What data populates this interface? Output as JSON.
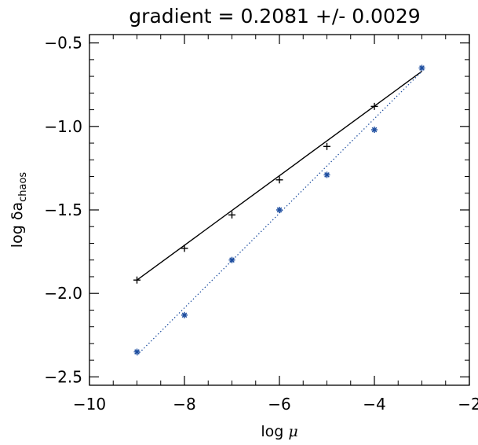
{
  "chart_data": {
    "type": "scatter",
    "title": "gradient = 0.2081 +/- 0.0029",
    "xlabel": {
      "prefix": "log ",
      "symbol": "μ"
    },
    "ylabel": {
      "prefix": "log δa",
      "subscript": "chaos"
    },
    "xlim": [
      -10,
      -2
    ],
    "ylim": [
      -2.55,
      -0.45
    ],
    "x_ticks": [
      -10,
      -8,
      -6,
      -4,
      -2
    ],
    "x_tick_labels": [
      "−10",
      "−8",
      "−6",
      "−4",
      "−2"
    ],
    "y_ticks": [
      -2.5,
      -2.0,
      -1.5,
      -1.0,
      -0.5
    ],
    "y_tick_labels": [
      "−2.5",
      "−2.0",
      "−1.5",
      "−1.0",
      "−0.5"
    ],
    "x_minor_step": 0.5,
    "y_minor_step": 0.1,
    "grid": false,
    "series": [
      {
        "marker": "plus",
        "color": "#000000",
        "x": [
          -9,
          -8,
          -7,
          -6,
          -5,
          -4
        ],
        "y": [
          -1.92,
          -1.73,
          -1.53,
          -1.32,
          -1.12,
          -0.88
        ]
      },
      {
        "marker": "asterisk",
        "color": "#1f4fa0",
        "x": [
          -9,
          -8,
          -7,
          -6,
          -5,
          -4,
          -3
        ],
        "y": [
          -2.35,
          -2.13,
          -1.8,
          -1.5,
          -1.29,
          -1.02,
          -0.65
        ]
      }
    ],
    "fit_lines": [
      {
        "style": "solid",
        "color": "#000000",
        "x": [
          -9,
          -3
        ],
        "y": [
          -1.92,
          -0.67
        ]
      },
      {
        "style": "dotted",
        "color": "#1f4fa0",
        "x": [
          -9,
          -3
        ],
        "y": [
          -2.37,
          -0.67
        ]
      }
    ]
  }
}
